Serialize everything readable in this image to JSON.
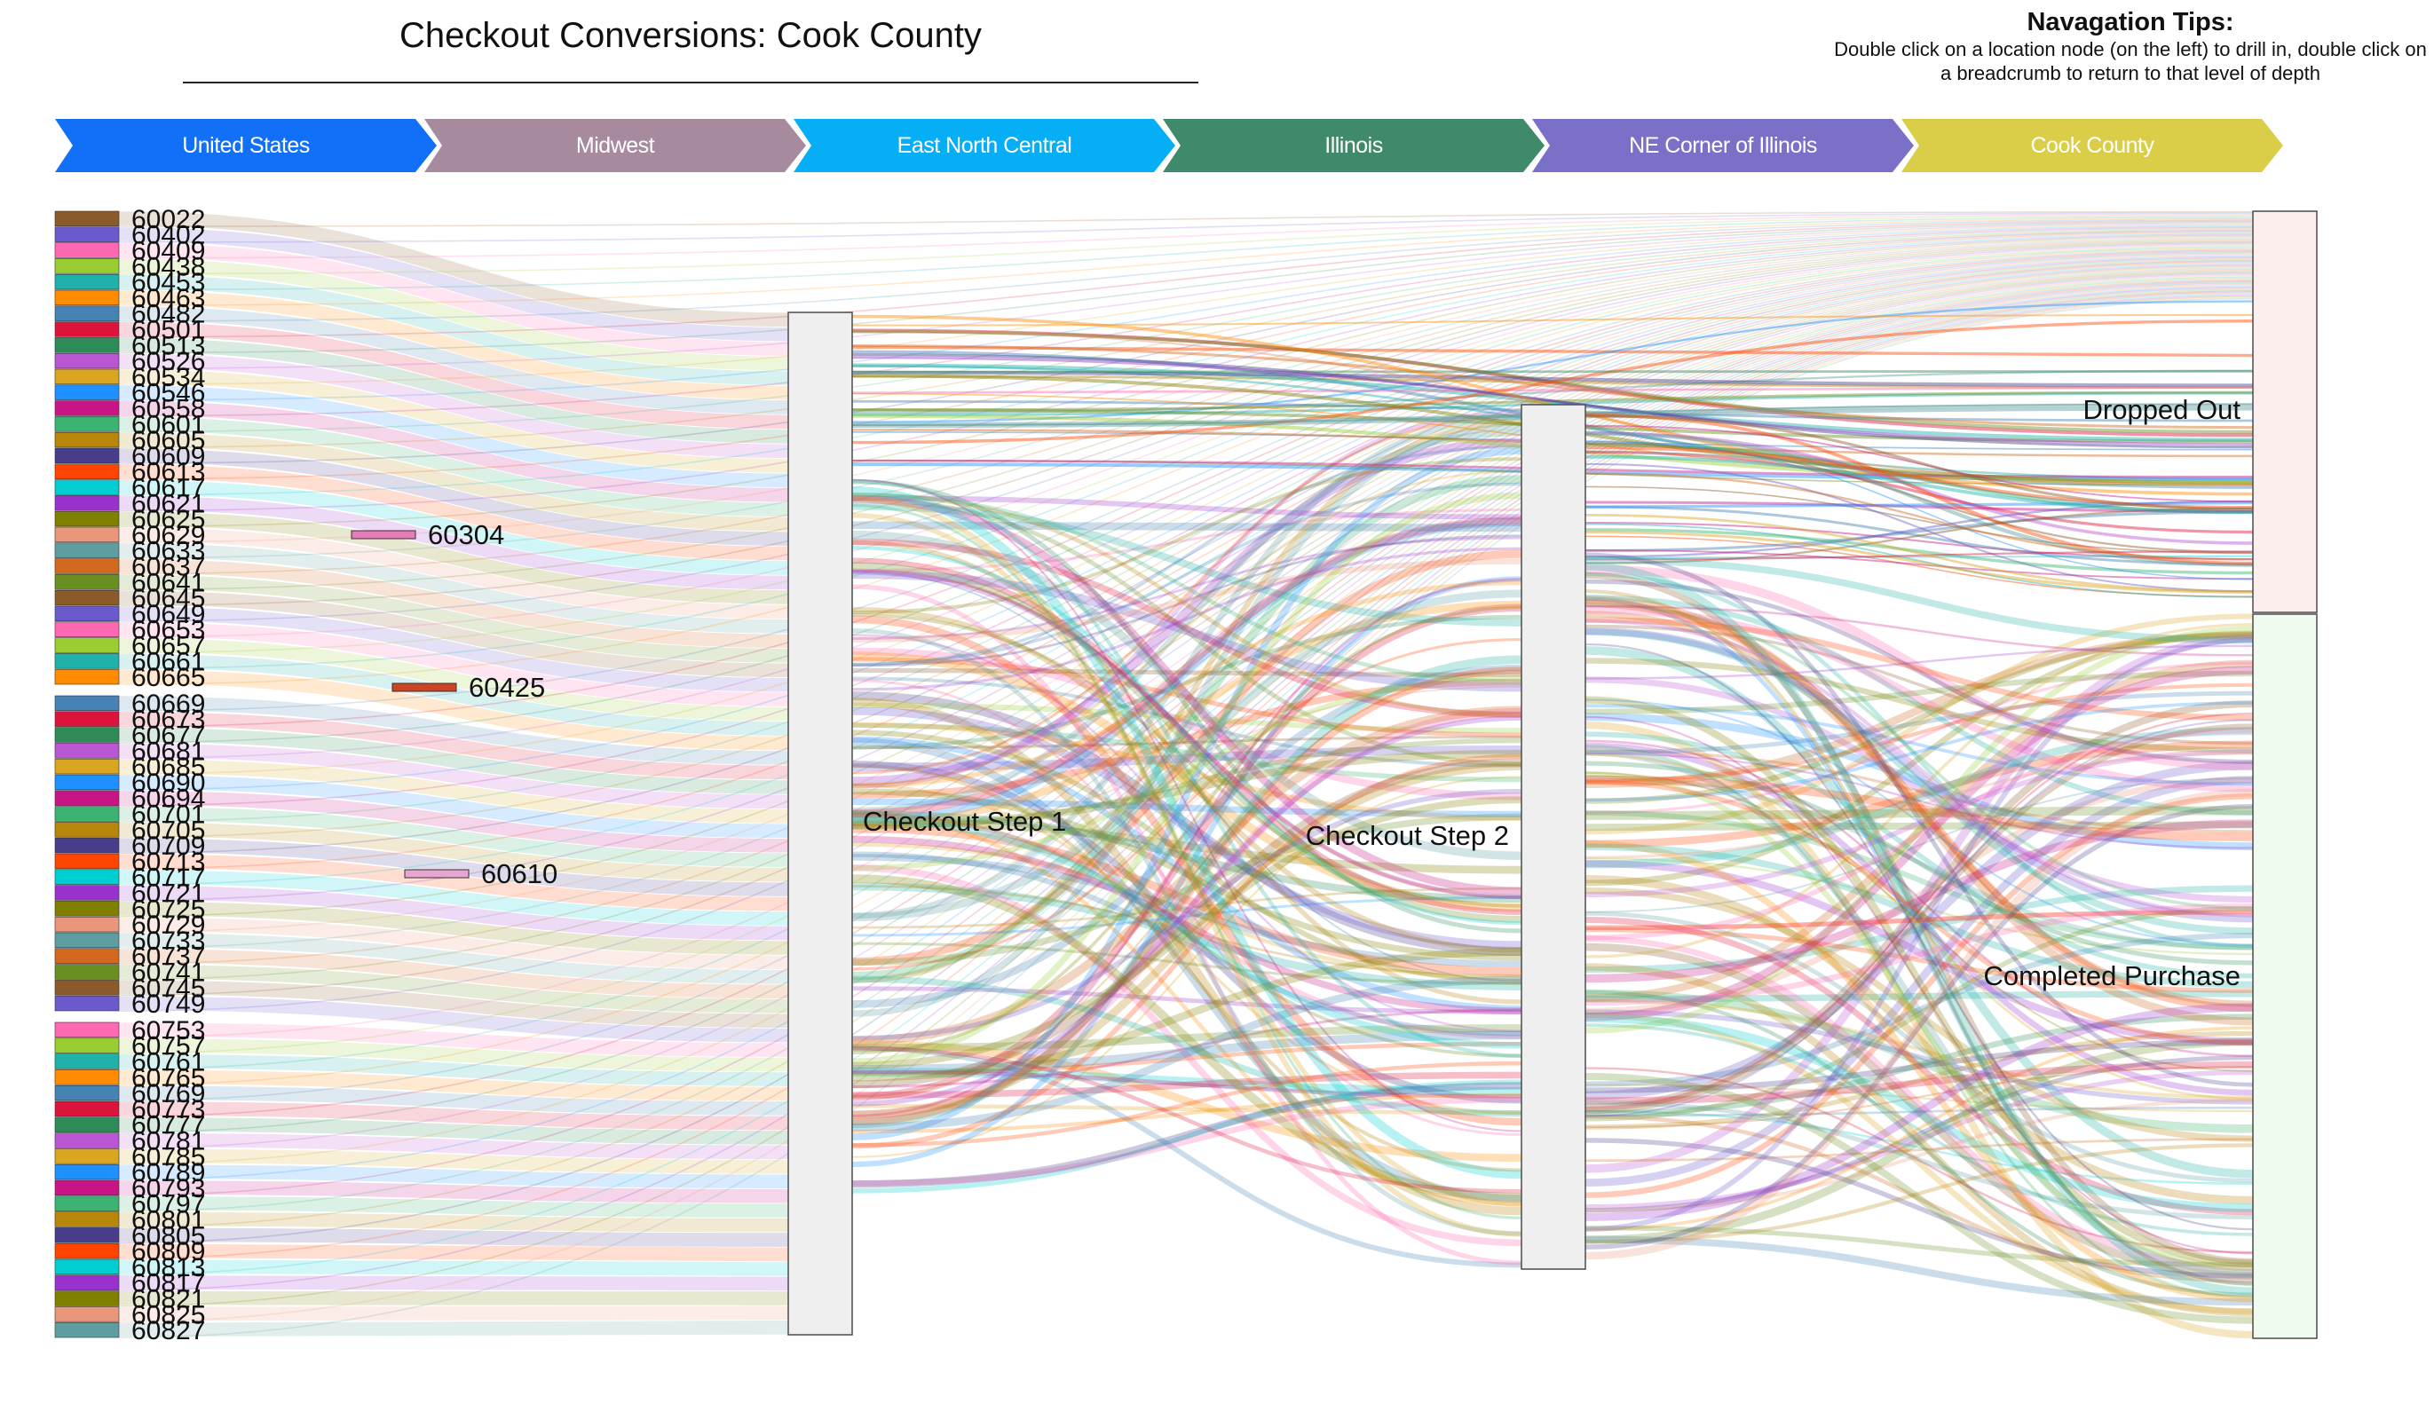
{
  "title": "Checkout Conversions: Cook County",
  "tips": {
    "heading": "Navagation Tips:",
    "body": "Double click on a location node (on the left) to drill in, double click on a breadcrumb to return to that level of depth"
  },
  "breadcrumbs": [
    {
      "label": "United States",
      "color": "#1170F7"
    },
    {
      "label": "Midwest",
      "color": "#A88A9F"
    },
    {
      "label": "East North Central",
      "color": "#06AEF5"
    },
    {
      "label": "Illinois",
      "color": "#3F8A6B"
    },
    {
      "label": "NE Corner of Illinois",
      "color": "#7A70C8"
    },
    {
      "label": "Cook County",
      "color": "#DACD48"
    }
  ],
  "chart_data": {
    "type": "sankey",
    "title": "Checkout Conversions: Cook County",
    "zip_nodes": [
      "60022",
      "60402",
      "60409",
      "60438",
      "60453",
      "60463",
      "60482",
      "60501",
      "60513",
      "60526",
      "60534",
      "60546",
      "60558",
      "60601",
      "60605",
      "60609",
      "60613",
      "60617",
      "60621",
      "60625",
      "60629",
      "60633",
      "60637",
      "60641",
      "60645",
      "60649",
      "60653",
      "60657",
      "60661",
      "60665",
      "60669",
      "60673",
      "60677",
      "60681",
      "60685",
      "60690",
      "60694",
      "60701",
      "60705",
      "60709",
      "60713",
      "60717",
      "60721",
      "60725",
      "60729",
      "60733",
      "60737",
      "60741",
      "60745",
      "60749",
      "60753",
      "60757",
      "60761",
      "60765",
      "60769",
      "60773",
      "60777",
      "60781",
      "60785",
      "60789",
      "60793",
      "60797",
      "60801",
      "60805",
      "60809",
      "60813",
      "60817",
      "60821",
      "60825",
      "60827"
    ],
    "highlighted_nodes": [
      "60304",
      "60425",
      "60610"
    ],
    "stage_nodes": [
      {
        "name": "Checkout Step 1"
      },
      {
        "name": "Checkout Step 2"
      },
      {
        "name": "Dropped Out"
      },
      {
        "name": "Completed Purchase"
      }
    ],
    "flows": [
      {
        "source": "ZIP codes",
        "target": "Checkout Step 1",
        "share": 0.91
      },
      {
        "source": "ZIP codes",
        "target": "Dropped Out",
        "share": 0.09
      },
      {
        "source": "Checkout Step 1",
        "target": "Checkout Step 2",
        "share": 0.77
      },
      {
        "source": "Checkout Step 1",
        "target": "Dropped Out",
        "share": 0.15
      },
      {
        "source": "Checkout Step 2",
        "target": "Completed Purchase",
        "share": 0.64
      },
      {
        "source": "Checkout Step 2",
        "target": "Dropped Out",
        "share": 0.12
      }
    ],
    "colors": {
      "stage_node_fill": "#EFEFEF",
      "dropped_out_fill": "#FDEEEE",
      "completed_fill": "#EEFBEE"
    }
  }
}
